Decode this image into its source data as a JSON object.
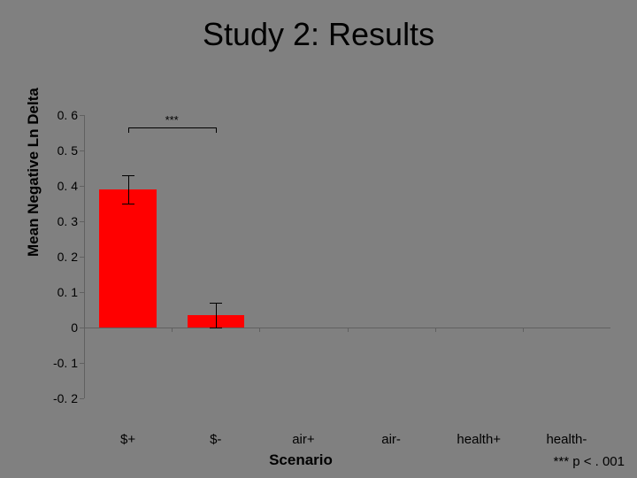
{
  "title": {
    "text": "Study 2: Results",
    "fontsize": 36,
    "font_family": "Verdana, Arial, sans-serif",
    "color": "#000000"
  },
  "chart": {
    "type": "bar",
    "background_color": "#808080",
    "bar_color": "#ff0000",
    "ylim": [
      -0.2,
      0.6
    ],
    "ytick_step": 0.1,
    "yticks": [
      "0. 6",
      "0. 5",
      "0. 4",
      "0. 3",
      "0. 2",
      "0. 1",
      "0",
      "-0. 1",
      "-0. 2"
    ],
    "ytick_values": [
      0.6,
      0.5,
      0.4,
      0.3,
      0.2,
      0.1,
      0,
      -0.1,
      -0.2
    ],
    "ylabel": "Mean Negative Ln Delta",
    "xlabel": "Scenario",
    "label_fontsize": 17,
    "tick_fontsize": 14,
    "categories": [
      "$+",
      "$-",
      "air+",
      "air-",
      "health+",
      "health-"
    ],
    "values": [
      0.39,
      0.035,
      0,
      0,
      0,
      0
    ],
    "errors": [
      0.04,
      0.035,
      0,
      0,
      0,
      0
    ],
    "bar_width": 0.65,
    "axis_color": "#606060",
    "error_bar_color": "#000000",
    "significance": {
      "label": "***",
      "from_index": 0,
      "to_index": 1,
      "y": 0.565
    }
  },
  "footnote": {
    "text": "*** p < . 001",
    "fontsize": 15
  }
}
